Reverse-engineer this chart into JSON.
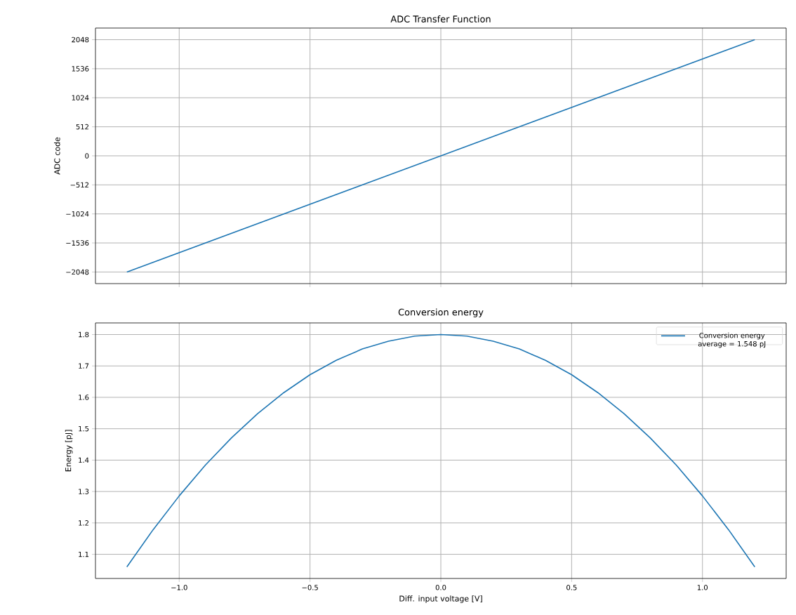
{
  "chart_data": [
    {
      "type": "line",
      "title": "ADC Transfer Function",
      "ylabel": "ADC code",
      "x": [
        -1.2,
        0,
        1.2
      ],
      "series": [
        {
          "color": "#1f77b4",
          "values": [
            -2048,
            0,
            2048
          ]
        }
      ],
      "xlim": [
        -1.32,
        1.32
      ],
      "xticks": [
        {
          "value": -1,
          "label": null
        },
        {
          "value": -0.5,
          "label": null
        },
        {
          "value": 0,
          "label": null
        },
        {
          "value": 0.5,
          "label": null
        },
        {
          "value": 1,
          "label": null
        }
      ],
      "ylim": [
        -2252.8,
        2252.8
      ],
      "yticks": [
        {
          "value": -2048,
          "label": "−2048"
        },
        {
          "value": -1536,
          "label": "−1536"
        },
        {
          "value": -1024,
          "label": "−1024"
        },
        {
          "value": -512,
          "label": "−512"
        },
        0,
        512,
        1024,
        1536,
        2048
      ],
      "tick_labels": "y",
      "grid": true,
      "legend": false
    },
    {
      "type": "line",
      "title": "Conversion energy",
      "xlabel": "Diff. input voltage [V]",
      "ylabel": "Energy [pJ]",
      "x": [
        -1.2,
        -1.1,
        -1.0,
        -0.9,
        -0.8,
        -0.7,
        -0.6,
        -0.5,
        -0.4,
        -0.3,
        -0.2,
        -0.1,
        0,
        0.1,
        0.2,
        0.3,
        0.4,
        0.5,
        0.6,
        0.7,
        0.8,
        0.9,
        1.0,
        1.1,
        1.2
      ],
      "series": [
        {
          "name": "Conversion energy average = 1.548 pJ",
          "color": "#1f77b4",
          "values": [
            1.06,
            1.178,
            1.286,
            1.384,
            1.471,
            1.548,
            1.615,
            1.672,
            1.718,
            1.754,
            1.779,
            1.795,
            1.8,
            1.795,
            1.779,
            1.754,
            1.718,
            1.672,
            1.615,
            1.548,
            1.471,
            1.384,
            1.286,
            1.178,
            1.06
          ]
        }
      ],
      "xlim": [
        -1.32,
        1.32
      ],
      "xticks": [
        {
          "value": -1,
          "label": "−1.0"
        },
        {
          "value": -0.5,
          "label": "−0.5"
        },
        {
          "value": 0,
          "label": "0.0"
        },
        {
          "value": 0.5,
          "label": "0.5"
        },
        {
          "value": 1,
          "label": "1.0"
        }
      ],
      "ylim": [
        1.023,
        1.837
      ],
      "yticks": [
        1.1,
        1.2,
        1.3,
        1.4,
        1.5,
        1.6,
        1.7,
        1.8
      ],
      "grid": true,
      "legend": "top right"
    }
  ]
}
